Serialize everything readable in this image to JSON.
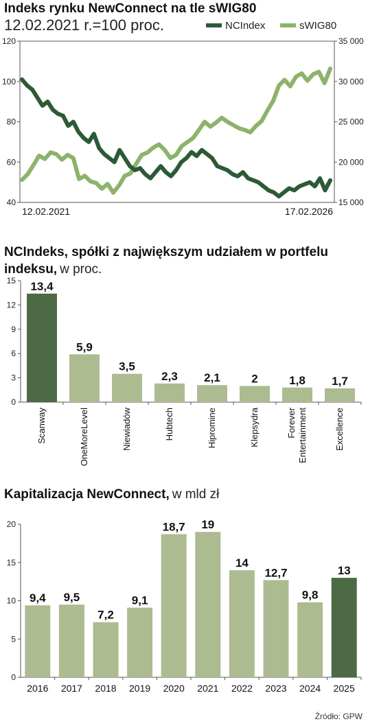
{
  "chart_data": [
    {
      "type": "line",
      "title": "Indeks rynku NewConnect na tle sWIG80",
      "subtitle": "12.02.2021 r.=100 proc.",
      "x_start_label": "12.02.2021",
      "x_end_label": "17.02.2026",
      "ylim_left": [
        40,
        120
      ],
      "yticks_left": [
        "120",
        "100",
        "80",
        "60",
        "40"
      ],
      "ylim_right": [
        15000,
        35000
      ],
      "yticks_right": [
        "35 000",
        "30 000",
        "25 000",
        "20 000",
        "15 000"
      ],
      "grid": false,
      "legend_position": "top-right",
      "series": [
        {
          "name": "NCIndex",
          "axis": "left",
          "color": "#2d5a36",
          "values": [
            101,
            98,
            96,
            92,
            88,
            90,
            86,
            84,
            83,
            78,
            80,
            75,
            72,
            70,
            74,
            67,
            64,
            62,
            60,
            66,
            62,
            58,
            56,
            57,
            54,
            52,
            55,
            58,
            55,
            53,
            56,
            60,
            62,
            65,
            63,
            66,
            64,
            62,
            58,
            57,
            56,
            54,
            53,
            55,
            52,
            51,
            50,
            48,
            46,
            45,
            43,
            45,
            47,
            46,
            48,
            49,
            50,
            48,
            52,
            46,
            51
          ]
        },
        {
          "name": "sWIG80",
          "axis": "right",
          "color": "#8db36b",
          "values": [
            17800,
            18500,
            19600,
            20800,
            20400,
            21200,
            21000,
            20300,
            20900,
            20500,
            17900,
            18300,
            17600,
            17400,
            16700,
            17300,
            16200,
            17100,
            18300,
            18600,
            19800,
            20900,
            21200,
            21800,
            22200,
            21500,
            20500,
            20900,
            22000,
            22500,
            23000,
            24000,
            25000,
            24400,
            24900,
            25500,
            25000,
            24600,
            24200,
            24000,
            23700,
            24500,
            25100,
            26400,
            27600,
            29500,
            30200,
            29400,
            30600,
            31000,
            30100,
            30900,
            31200,
            29800,
            31600
          ]
        }
      ]
    },
    {
      "type": "bar",
      "title_bold": "NCIndeks, spółki z największym udziałem w portfelu indeksu,",
      "title_bold_line1": "NCIndeks, spółki z największym udziałem w portfelu",
      "title_bold_line2": "indeksu,",
      "title_light": "w proc.",
      "categories": [
        "Scanway",
        "OneMoreLevel",
        "Niewiadów",
        "Hubtech",
        "Hipromine",
        "Klepsydra",
        "Forever Entertainment",
        "Excellence"
      ],
      "category_lines": [
        [
          "Scanway"
        ],
        [
          "OneMoreLevel"
        ],
        [
          "Niewiadów"
        ],
        [
          "Hubtech"
        ],
        [
          "Hipromine"
        ],
        [
          "Klepsydra"
        ],
        [
          "Forever",
          "Entertainment"
        ],
        [
          "Excellence"
        ]
      ],
      "values": [
        13.4,
        5.9,
        3.5,
        2.3,
        2.1,
        2,
        1.8,
        1.7
      ],
      "value_labels": [
        "13,4",
        "5,9",
        "3,5",
        "2,3",
        "2,1",
        "2",
        "1,8",
        "1,7"
      ],
      "highlight_index": 0,
      "ylim": [
        0,
        15
      ],
      "yticks": [
        "15",
        "12",
        "9",
        "6",
        "3",
        "0"
      ]
    },
    {
      "type": "bar",
      "title_bold": "Kapitalizacja NewConnect,",
      "title_light": "w mld zł",
      "categories": [
        "2016",
        "2017",
        "2018",
        "2019",
        "2020",
        "2021",
        "2022",
        "2023",
        "2024",
        "2025"
      ],
      "values": [
        9.4,
        9.5,
        7.2,
        9.1,
        18.7,
        19,
        14,
        12.7,
        9.8,
        13
      ],
      "value_labels": [
        "9,4",
        "9,5",
        "7,2",
        "9,1",
        "18,7",
        "19",
        "14",
        "12,7",
        "9,8",
        "13"
      ],
      "highlight_index": 9,
      "ylim": [
        0,
        20
      ],
      "yticks": [
        "20",
        "15",
        "10",
        "5",
        "0"
      ]
    }
  ],
  "colors": {
    "dark_green": "#4c6b45",
    "light_green": "#adbb91",
    "axis": "#444444"
  },
  "source": "Źródło: GPW"
}
